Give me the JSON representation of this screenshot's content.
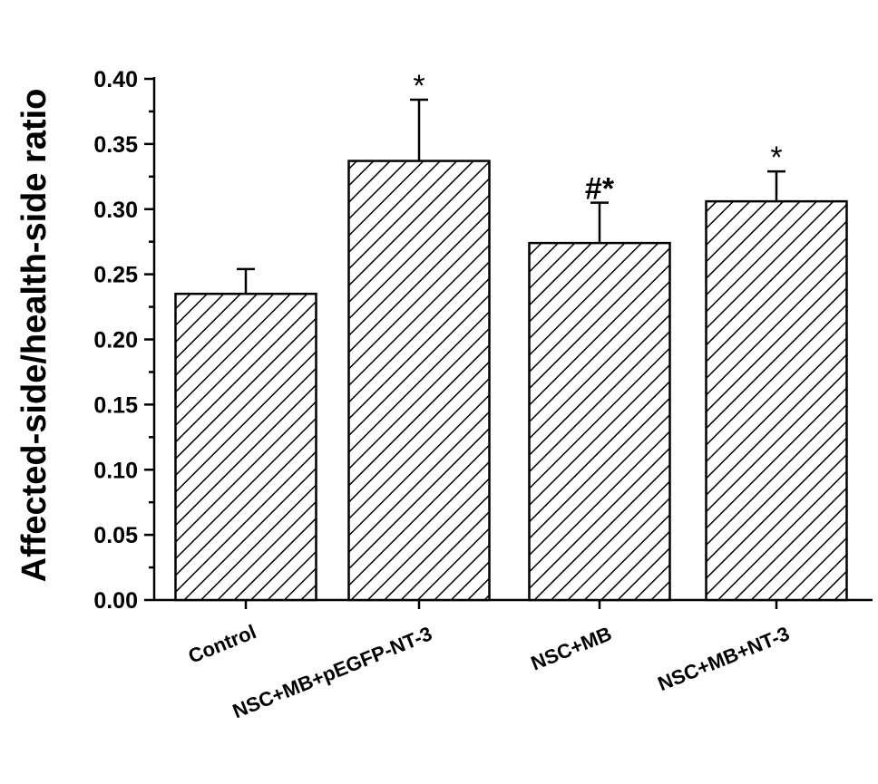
{
  "chart_data": {
    "type": "bar",
    "categories": [
      "Control",
      "NSC+MB+pEGFP-NT-3",
      "NSC+MB",
      "NSC+MB+NT-3"
    ],
    "values": [
      0.235,
      0.337,
      0.274,
      0.306
    ],
    "errors": [
      0.019,
      0.047,
      0.031,
      0.023
    ],
    "significance": [
      "",
      "*",
      "#*",
      "*"
    ],
    "ylabel": "Affected-side/health-side ratio",
    "xlabel": "",
    "ylim": [
      0,
      0.4
    ],
    "yticks": [
      "0.00",
      "0.05",
      "0.10",
      "0.15",
      "0.20",
      "0.25",
      "0.30",
      "0.35",
      "0.40"
    ],
    "grid": false,
    "fill_pattern": "diagonal-hatch",
    "bar_color": "#ffffff",
    "stroke_color": "#000000"
  }
}
